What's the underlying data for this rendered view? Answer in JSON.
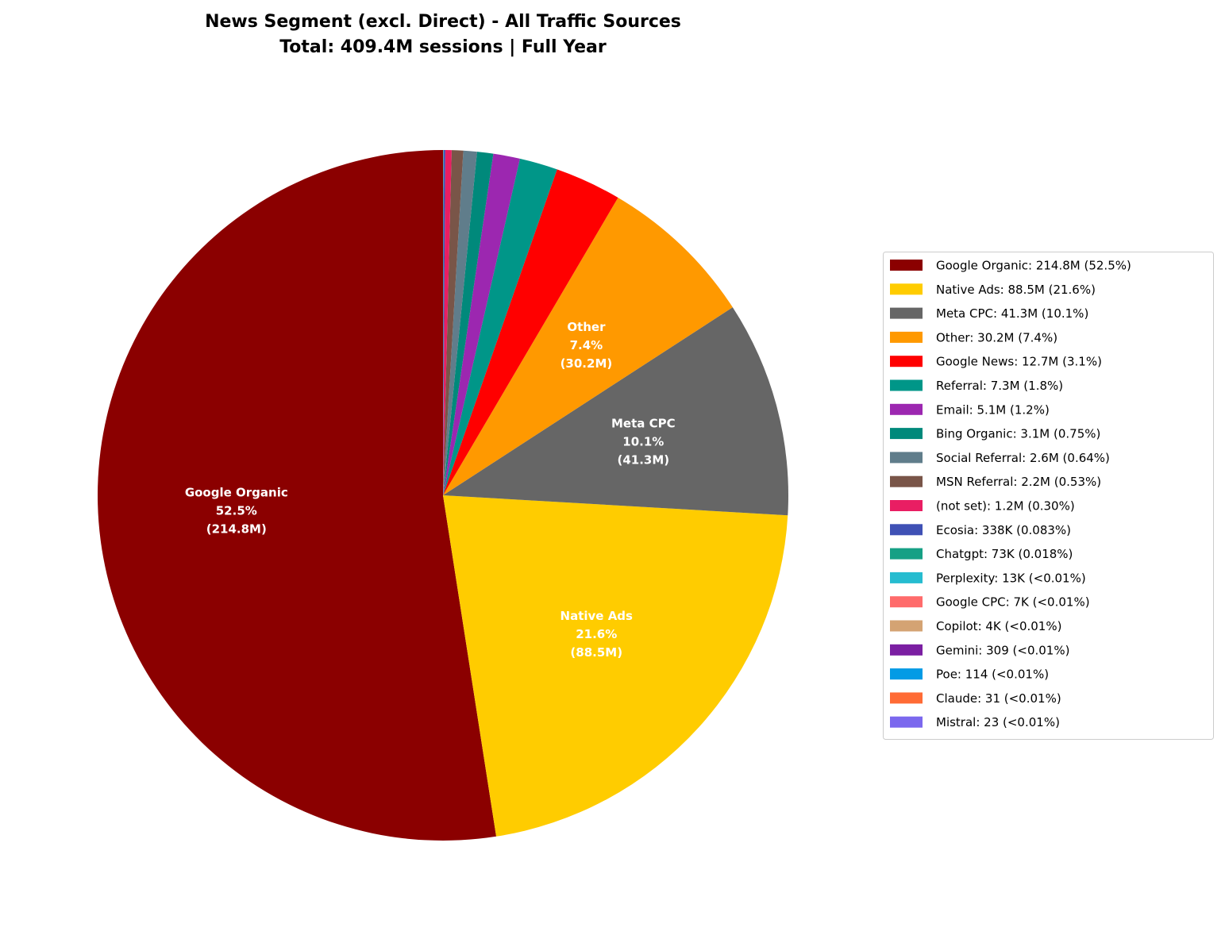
{
  "chart_data": {
    "type": "pie",
    "title": "News Segment (excl. Direct) - All Traffic Sources",
    "subtitle": "Total: 409.4M sessions | Full Year",
    "categories": [
      "Google Organic",
      "Native Ads",
      "Meta CPC",
      "Other",
      "Google News",
      "Referral",
      "Email",
      "Bing Organic",
      "Social Referral",
      "MSN Referral",
      "(not set)",
      "Ecosia",
      "Chatgpt",
      "Perplexity",
      "Google CPC",
      "Copilot",
      "Gemini",
      "Poe",
      "Claude",
      "Mistral"
    ],
    "values": [
      214800000,
      88500000,
      41300000,
      30200000,
      12700000,
      7300000,
      5100000,
      3100000,
      2600000,
      2200000,
      1200000,
      338000,
      73000,
      13000,
      7000,
      4000,
      309,
      114,
      31,
      23
    ],
    "colors": [
      "#8b0000",
      "#ffcc00",
      "#666666",
      "#ff9900",
      "#ff0000",
      "#009688",
      "#9c27b0",
      "#00897b",
      "#607d8b",
      "#795548",
      "#e91e63",
      "#3f51b5",
      "#16a085",
      "#26bcd0",
      "#ff6b6b",
      "#d4a373",
      "#7b1fa2",
      "#039be5",
      "#ff6b35",
      "#7b68ee"
    ],
    "legend_labels": [
      "Google Organic: 214.8M (52.5%)",
      "Native Ads: 88.5M (21.6%)",
      "Meta CPC: 41.3M (10.1%)",
      "Other: 30.2M (7.4%)",
      "Google News: 12.7M (3.1%)",
      "Referral: 7.3M (1.8%)",
      "Email: 5.1M (1.2%)",
      "Bing Organic: 3.1M (0.75%)",
      "Social Referral: 2.6M (0.64%)",
      "MSN Referral: 2.2M (0.53%)",
      "(not set): 1.2M (0.30%)",
      "Ecosia: 338K (0.083%)",
      "Chatgpt: 73K (0.018%)",
      "Perplexity: 13K (<0.01%)",
      "Google CPC: 7K (<0.01%)",
      "Copilot: 4K (<0.01%)",
      "Gemini: 309 (<0.01%)",
      "Poe: 114 (<0.01%)",
      "Claude: 31 (<0.01%)",
      "Mistral: 23 (<0.01%)"
    ],
    "slice_labels": [
      [
        "Google Organic",
        "52.5%",
        "(214.8M)"
      ],
      [
        "Native Ads",
        "21.6%",
        "(88.5M)"
      ],
      [
        "Meta CPC",
        "10.1%",
        "(41.3M)"
      ],
      [
        "Other",
        "7.4%",
        "(30.2M)"
      ],
      null,
      null,
      null,
      null,
      null,
      null,
      null,
      null,
      null,
      null,
      null,
      null,
      null,
      null,
      null,
      null
    ],
    "start_angle": 90,
    "direction": "counterclockwise",
    "legend": "right"
  }
}
